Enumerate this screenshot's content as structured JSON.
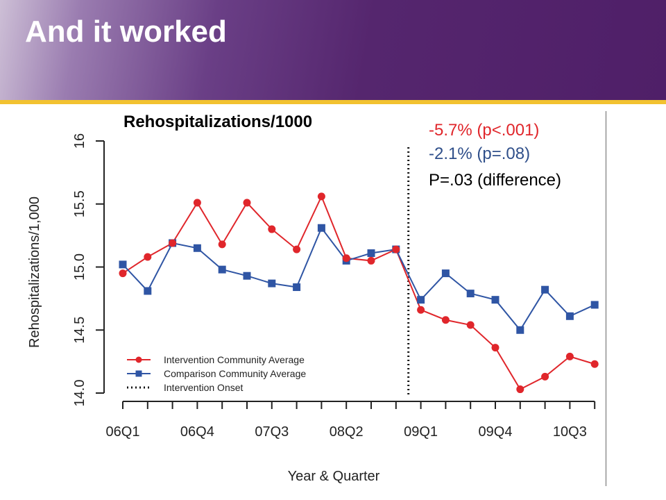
{
  "slide": {
    "title": "And it worked"
  },
  "annotations": {
    "stat_intervention": "-5.7% (p<.001)",
    "stat_comparison": "-2.1% (p=.08)",
    "stat_difference": "P=.03 (difference)"
  },
  "colors": {
    "intervention": "#e0262b",
    "comparison": "#2f55a4",
    "banner": "#55266e",
    "accent_line": "#f2c230"
  },
  "chart_data": {
    "type": "line",
    "title": "Rehospitalizations/1000",
    "xlabel": "Year & Quarter",
    "ylabel": "Rehospitalizations/1,000",
    "ylim": [
      14.0,
      16.0
    ],
    "yticks": [
      14.0,
      14.5,
      15.0,
      15.5,
      16
    ],
    "ytick_labels": [
      "14.0",
      "14.5",
      "15.0",
      "15.5",
      "16"
    ],
    "categories": [
      "06Q1",
      "06Q2",
      "06Q3",
      "06Q4",
      "07Q1",
      "07Q2",
      "07Q3",
      "07Q4",
      "08Q1",
      "08Q2",
      "08Q3",
      "08Q4",
      "09Q1",
      "09Q2",
      "09Q3",
      "09Q4",
      "10Q1",
      "10Q2",
      "10Q3",
      "10Q4"
    ],
    "xtick_labels_shown": [
      "06Q1",
      "06Q4",
      "07Q3",
      "08Q2",
      "09Q1",
      "09Q4",
      "10Q3"
    ],
    "series": [
      {
        "name": "Intervention Community Average",
        "marker": "circle",
        "values": [
          14.95,
          15.08,
          15.19,
          15.51,
          15.18,
          15.51,
          15.3,
          15.14,
          15.56,
          15.07,
          15.05,
          15.14,
          14.66,
          14.58,
          14.54,
          14.36,
          14.03,
          14.13,
          14.29,
          14.23
        ]
      },
      {
        "name": "Comparison Community Average",
        "marker": "square",
        "values": [
          15.02,
          14.81,
          15.19,
          15.15,
          14.98,
          14.93,
          14.87,
          14.84,
          15.31,
          15.05,
          15.11,
          15.14,
          14.74,
          14.95,
          14.79,
          14.74,
          14.5,
          14.82,
          14.61,
          14.7
        ]
      }
    ],
    "onset": {
      "name": "Intervention Onset",
      "style": "dotted",
      "position_between": [
        "08Q4",
        "09Q1"
      ]
    },
    "legend": "bottom-left",
    "grid": false
  }
}
